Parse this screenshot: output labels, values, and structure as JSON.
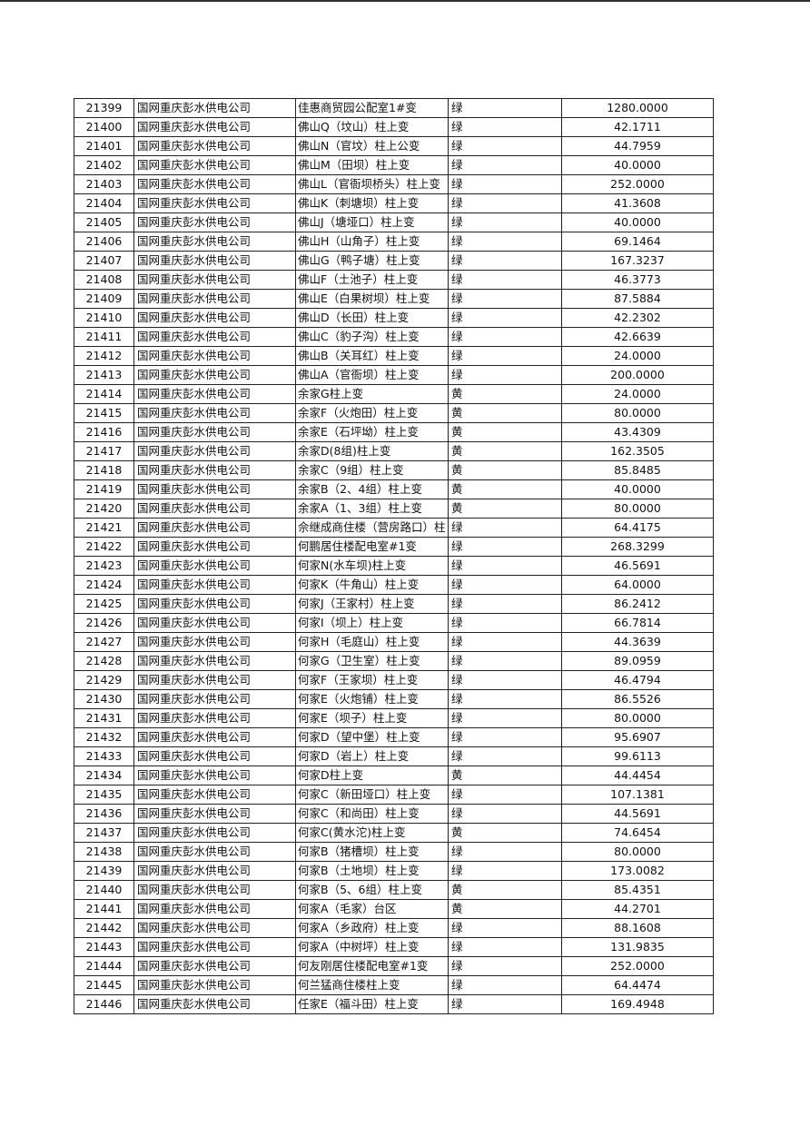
{
  "table": {
    "rows": [
      [
        "21399",
        "国网重庆彭水供电公司",
        "佳惠商贸园公配室1#变",
        "绿",
        "1280.0000"
      ],
      [
        "21400",
        "国网重庆彭水供电公司",
        "佛山Q（坟山）柱上变",
        "绿",
        "42.1711"
      ],
      [
        "21401",
        "国网重庆彭水供电公司",
        "佛山N（官坟）柱上公变",
        "绿",
        "44.7959"
      ],
      [
        "21402",
        "国网重庆彭水供电公司",
        "佛山M（田坝）柱上变",
        "绿",
        "40.0000"
      ],
      [
        "21403",
        "国网重庆彭水供电公司",
        "佛山L（官衙坝桥头）柱上变",
        "绿",
        "252.0000"
      ],
      [
        "21404",
        "国网重庆彭水供电公司",
        "佛山K（刺塘坝）柱上变",
        "绿",
        "41.3608"
      ],
      [
        "21405",
        "国网重庆彭水供电公司",
        "佛山J（塘垭口）柱上变",
        "绿",
        "40.0000"
      ],
      [
        "21406",
        "国网重庆彭水供电公司",
        "佛山H（山角子）柱上变",
        "绿",
        "69.1464"
      ],
      [
        "21407",
        "国网重庆彭水供电公司",
        "佛山G（鸭子塘）柱上变",
        "绿",
        "167.3237"
      ],
      [
        "21408",
        "国网重庆彭水供电公司",
        "佛山F（土池子）柱上变",
        "绿",
        "46.3773"
      ],
      [
        "21409",
        "国网重庆彭水供电公司",
        "佛山E（白果树坝）柱上变",
        "绿",
        "87.5884"
      ],
      [
        "21410",
        "国网重庆彭水供电公司",
        "佛山D（长田）柱上变",
        "绿",
        "42.2302"
      ],
      [
        "21411",
        "国网重庆彭水供电公司",
        "佛山C（豹子沟）柱上变",
        "绿",
        "42.6639"
      ],
      [
        "21412",
        "国网重庆彭水供电公司",
        "佛山B（关耳红）柱上变",
        "绿",
        "24.0000"
      ],
      [
        "21413",
        "国网重庆彭水供电公司",
        "佛山A（官衙坝）柱上变",
        "绿",
        "200.0000"
      ],
      [
        "21414",
        "国网重庆彭水供电公司",
        "余家G柱上变",
        "黄",
        "24.0000"
      ],
      [
        "21415",
        "国网重庆彭水供电公司",
        "余家F（火炮田）柱上变",
        "黄",
        "80.0000"
      ],
      [
        "21416",
        "国网重庆彭水供电公司",
        "余家E（石坪坳）柱上变",
        "黄",
        "43.4309"
      ],
      [
        "21417",
        "国网重庆彭水供电公司",
        "余家D(8组)柱上变",
        "黄",
        "162.3505"
      ],
      [
        "21418",
        "国网重庆彭水供电公司",
        "余家C（9组）柱上变",
        "黄",
        "85.8485"
      ],
      [
        "21419",
        "国网重庆彭水供电公司",
        "余家B（2、4组）柱上变",
        "黄",
        "40.0000"
      ],
      [
        "21420",
        "国网重庆彭水供电公司",
        "余家A（1、3组）柱上变",
        "黄",
        "80.0000"
      ],
      [
        "21421",
        "国网重庆彭水供电公司",
        "佘继成商住楼（营房路口）柱",
        "绿",
        "64.4175"
      ],
      [
        "21422",
        "国网重庆彭水供电公司",
        "何鹏居住楼配电室#1变",
        "绿",
        "268.3299"
      ],
      [
        "21423",
        "国网重庆彭水供电公司",
        "何家N(水车坝)柱上变",
        "绿",
        "46.5691"
      ],
      [
        "21424",
        "国网重庆彭水供电公司",
        "何家K（牛角山）柱上变",
        "绿",
        "64.0000"
      ],
      [
        "21425",
        "国网重庆彭水供电公司",
        "何家J（王家村）柱上变",
        "绿",
        "86.2412"
      ],
      [
        "21426",
        "国网重庆彭水供电公司",
        "何家I（坝上）柱上变",
        "绿",
        "66.7814"
      ],
      [
        "21427",
        "国网重庆彭水供电公司",
        "何家H（毛庭山）柱上变",
        "绿",
        "44.3639"
      ],
      [
        "21428",
        "国网重庆彭水供电公司",
        "何家G（卫生室）柱上变",
        "绿",
        "89.0959"
      ],
      [
        "21429",
        "国网重庆彭水供电公司",
        "何家F（王家坝）柱上变",
        "绿",
        "46.4794"
      ],
      [
        "21430",
        "国网重庆彭水供电公司",
        "何家E（火炮铺）柱上变",
        "绿",
        "86.5526"
      ],
      [
        "21431",
        "国网重庆彭水供电公司",
        "何家E（坝子）柱上变",
        "绿",
        "80.0000"
      ],
      [
        "21432",
        "国网重庆彭水供电公司",
        "何家D（望中堡）柱上变",
        "绿",
        "95.6907"
      ],
      [
        "21433",
        "国网重庆彭水供电公司",
        "何家D（岩上）柱上变",
        "绿",
        "99.6113"
      ],
      [
        "21434",
        "国网重庆彭水供电公司",
        "何家D柱上变",
        "黄",
        "44.4454"
      ],
      [
        "21435",
        "国网重庆彭水供电公司",
        "何家C（新田垭口）柱上变",
        "绿",
        "107.1381"
      ],
      [
        "21436",
        "国网重庆彭水供电公司",
        "何家C（和尚田）柱上变",
        "绿",
        "44.5691"
      ],
      [
        "21437",
        "国网重庆彭水供电公司",
        "何家C(黄水沱)柱上变",
        "黄",
        "74.6454"
      ],
      [
        "21438",
        "国网重庆彭水供电公司",
        "何家B（猪槽坝）柱上变",
        "绿",
        "80.0000"
      ],
      [
        "21439",
        "国网重庆彭水供电公司",
        "何家B（土地坝）柱上变",
        "绿",
        "173.0082"
      ],
      [
        "21440",
        "国网重庆彭水供电公司",
        "何家B（5、6组）柱上变",
        "黄",
        "85.4351"
      ],
      [
        "21441",
        "国网重庆彭水供电公司",
        "何家A（毛家）台区",
        "黄",
        "44.2701"
      ],
      [
        "21442",
        "国网重庆彭水供电公司",
        "何家A（乡政府）柱上变",
        "绿",
        "88.1608"
      ],
      [
        "21443",
        "国网重庆彭水供电公司",
        "何家A（中树坪）柱上变",
        "绿",
        "131.9835"
      ],
      [
        "21444",
        "国网重庆彭水供电公司",
        "何友刚居住楼配电室#1变",
        "绿",
        "252.0000"
      ],
      [
        "21445",
        "国网重庆彭水供电公司",
        "何兰猛商住楼柱上变",
        "绿",
        "64.4474"
      ],
      [
        "21446",
        "国网重庆彭水供电公司",
        "任家E（福斗田）柱上变",
        "绿",
        "169.4948"
      ]
    ]
  }
}
